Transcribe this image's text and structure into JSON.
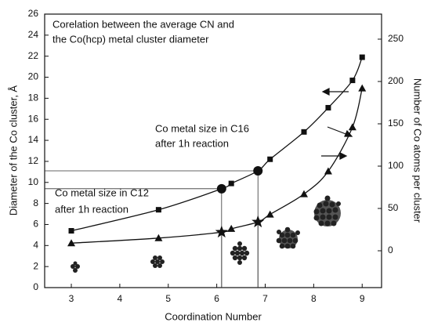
{
  "chart_data": {
    "type": "line",
    "title": [
      "Corelation between the average CN and",
      "the Co(hcp) metal cluster diameter"
    ],
    "x_label": "Coordination Number",
    "y_label": "Diameter of the Co cluster, Å",
    "y2_label": "Number of Co atoms per cluster",
    "annotations": [
      [
        "Co metal size in C16",
        "after 1h reaction"
      ],
      [
        "Co metal size in C12",
        "after 1h reaction"
      ]
    ],
    "x": [
      3,
      4.8,
      6.1,
      6.3,
      6.85,
      7.1,
      7.8,
      8.3,
      8.8,
      9
    ],
    "series": [
      {
        "color": "#111111",
        "marker": "square",
        "values": [
          5.4,
          7.4,
          9.4,
          9.9,
          11.1,
          12.2,
          14.8,
          17.1,
          19.7,
          21.9
        ],
        "highlight": {
          "indices": [
            2,
            4
          ],
          "marker": "circle"
        }
      },
      {
        "color": "#111111",
        "marker": "triangle",
        "axis": "y2",
        "values": [
          9,
          15,
          22,
          26,
          34,
          43,
          67,
          94,
          146,
          192
        ],
        "highlight": {
          "indices": [
            2,
            4
          ],
          "marker": "star"
        }
      }
    ],
    "xlim": [
      2.45,
      9.4
    ],
    "xticks": [
      3,
      4,
      5,
      6,
      7,
      8,
      9
    ],
    "ylim": [
      0,
      26
    ],
    "yticks": [
      0,
      2,
      4,
      6,
      8,
      10,
      12,
      14,
      16,
      18,
      20,
      22,
      24,
      26
    ],
    "y2lim": [
      -43.5,
      279.6
    ],
    "y2ticks": [
      0,
      50,
      100,
      150,
      200,
      250
    ],
    "grid": false
  }
}
